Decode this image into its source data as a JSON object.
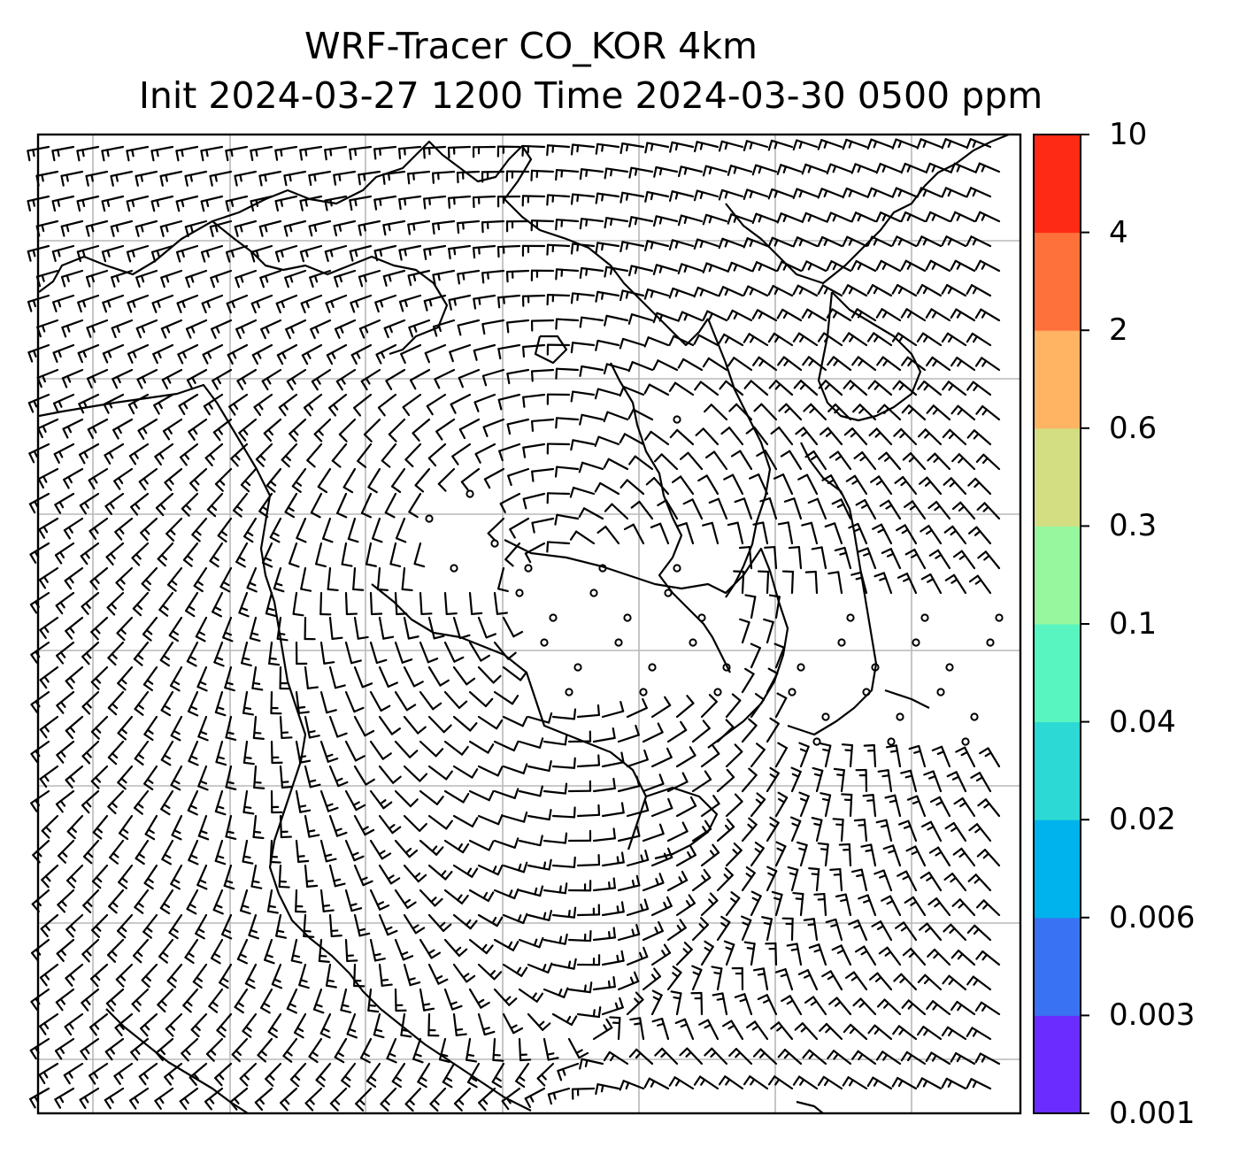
{
  "title": {
    "line1": "WRF-Tracer CO_KOR 4km",
    "line2": "Init 2024-03-27 1200 Time 2024-03-30 0500 ppm"
  },
  "colorbar": {
    "ticks": [
      "0.001",
      "0.003",
      "0.006",
      "0.02",
      "0.04",
      "0.1",
      "0.3",
      "0.6",
      "2",
      "4",
      "10"
    ],
    "colors": [
      "#6a2cff",
      "#3a72f4",
      "#00b3ec",
      "#2cd9d4",
      "#58f5c0",
      "#96f79e",
      "#d3dd82",
      "#ffb464",
      "#ff713b",
      "#ff2a16"
    ]
  },
  "map": {
    "grid_color": "#b8b8b8",
    "barb_color": "#000000"
  }
}
